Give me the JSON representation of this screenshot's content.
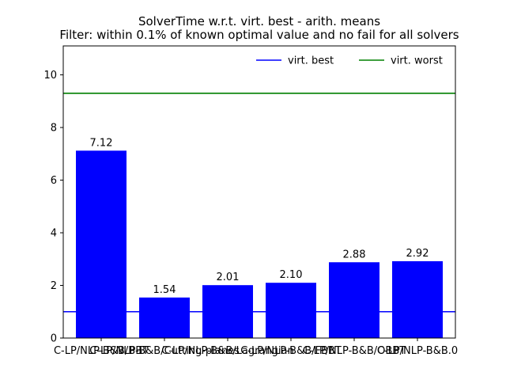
{
  "chart_data": {
    "type": "bar",
    "title": "SolverTime w.r.t. virt. best - arith. means",
    "subtitle": "Filter: within 0.1% of known optimal value and no fail for all solvers",
    "xlabel": "",
    "ylabel": "",
    "categories": [
      "C-LP/NLP-B&B/BBT",
      "C-LP/NLP-B&B/Cutting-planes",
      "C-LP/NLP-B&B/Lagrangian",
      "C-LP/NLP-B&B/FBBT",
      "C-LP/NLP-B&B/OBBT",
      "C-LP/NLP-B&B.0"
    ],
    "values": [
      7.12,
      1.54,
      2.01,
      2.1,
      2.88,
      2.92
    ],
    "value_labels": [
      "7.12",
      "1.54",
      "2.01",
      "2.10",
      "2.88",
      "2.92"
    ],
    "bar_color": "#0000ff",
    "ylim": [
      0,
      11.1
    ],
    "yticks": [
      0,
      2,
      4,
      6,
      8,
      10
    ],
    "reference_lines": [
      {
        "name": "virt. best",
        "value": 1.0,
        "color": "#0000ff"
      },
      {
        "name": "virt. worst",
        "value": 9.3,
        "color": "#008000"
      }
    ],
    "legend": {
      "position": "top-right",
      "entries": [
        "virt. best",
        "virt. worst"
      ]
    },
    "grid": false
  }
}
